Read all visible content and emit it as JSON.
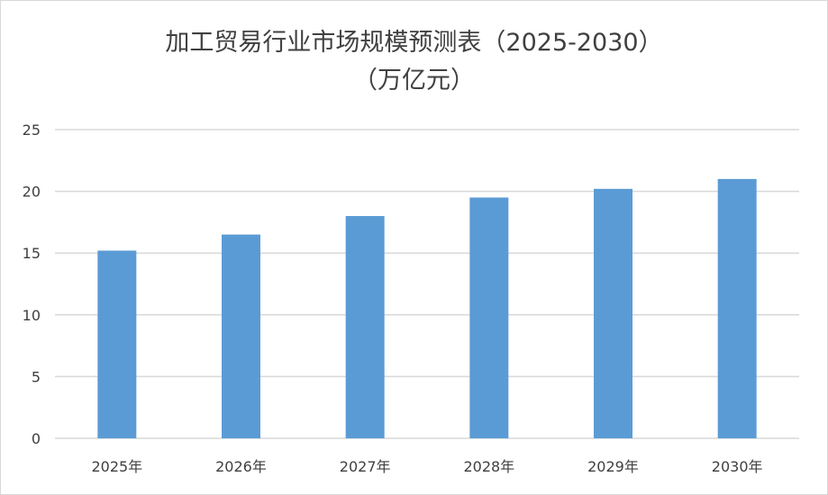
{
  "chart_data": {
    "type": "bar",
    "title_line1": "加工贸易行业市场规模预测表（2025-2030）",
    "title_line2": "（万亿元）",
    "categories": [
      "2025年",
      "2026年",
      "2027年",
      "2028年",
      "2029年",
      "2030年"
    ],
    "values": [
      15.2,
      16.5,
      18.0,
      19.5,
      20.2,
      21.0
    ],
    "ylim": [
      0,
      25
    ],
    "yticks": [
      0,
      5,
      10,
      15,
      20,
      25
    ],
    "grid": true,
    "bar_color": "#5b9bd5",
    "xlabel": "",
    "ylabel": ""
  }
}
